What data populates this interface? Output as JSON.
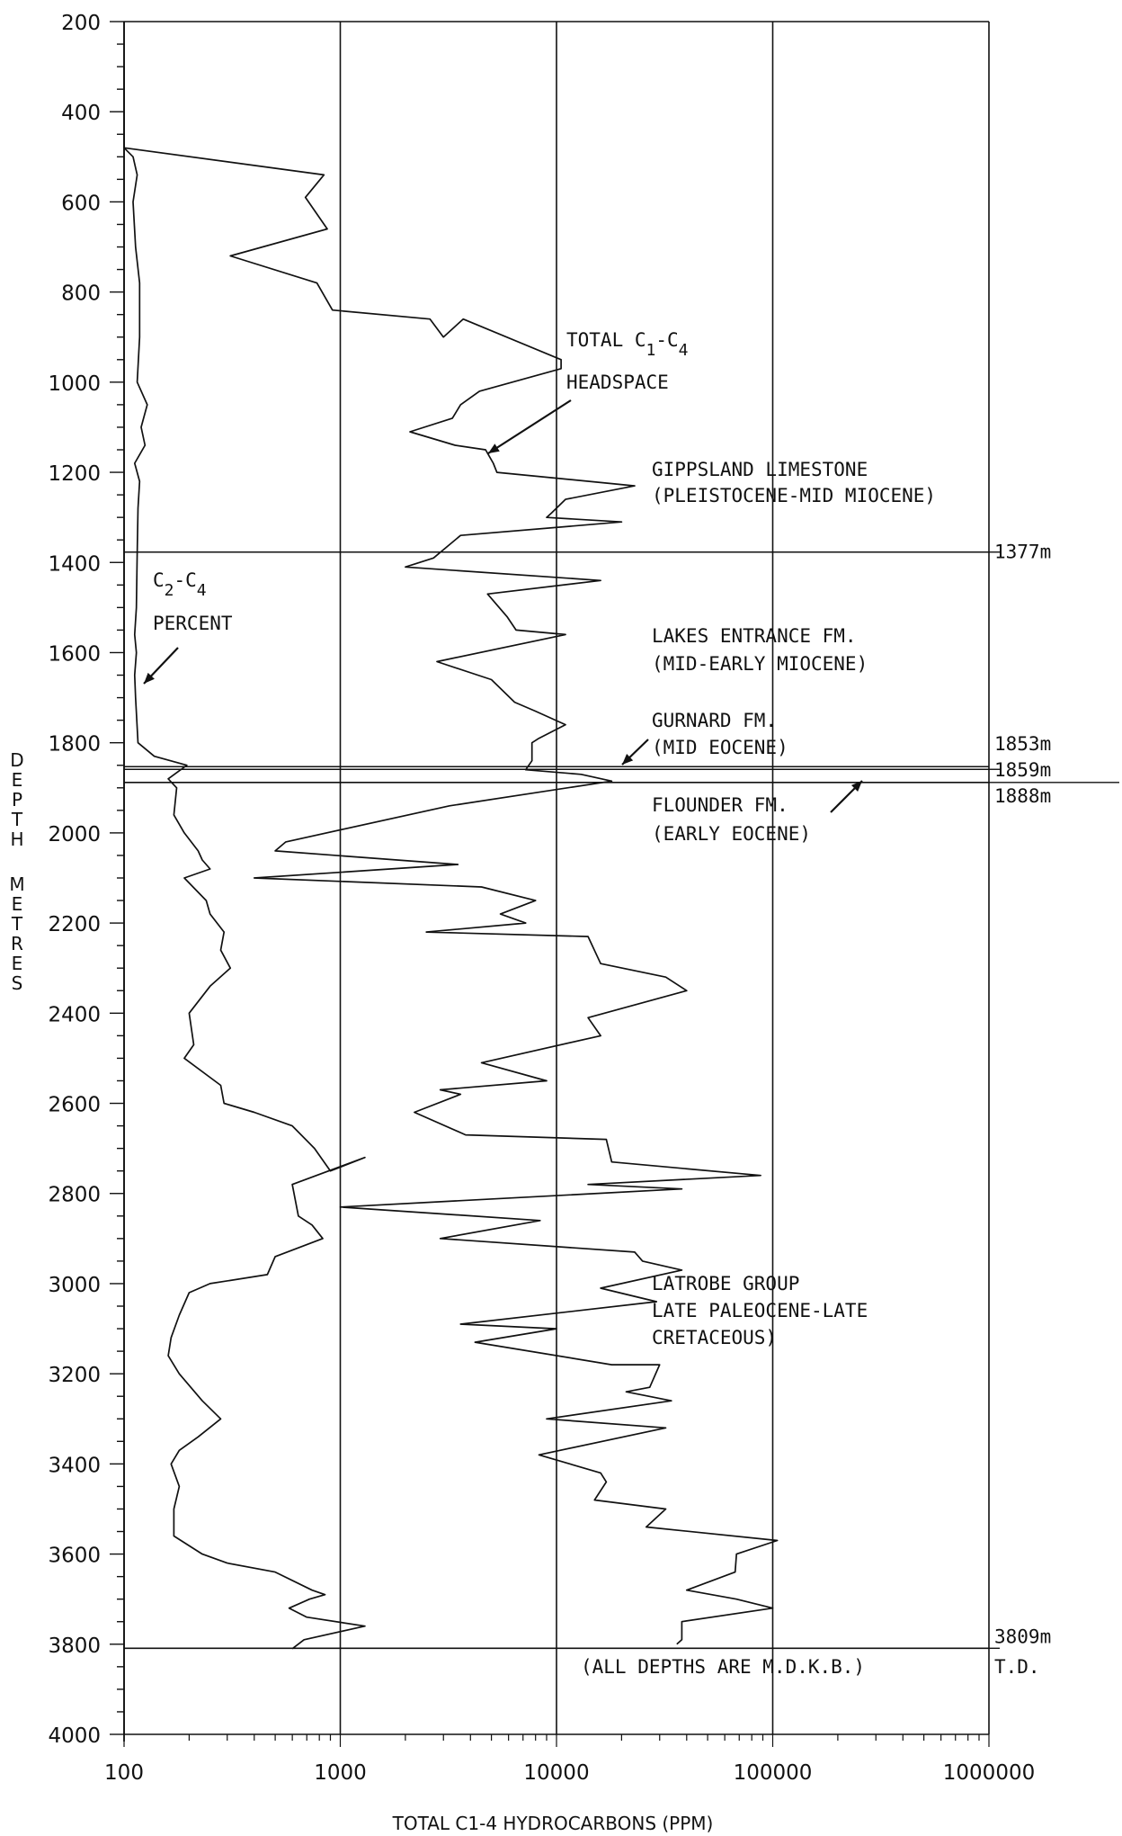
{
  "chart_data": {
    "type": "line",
    "xscale": "log",
    "xlim": [
      100,
      1000000
    ],
    "ylim": [
      200,
      4000
    ],
    "y_inverted": true,
    "grid": "vertical lines at each decade of x",
    "xlabel": "TOTAL C1-4 HYDROCARBONS (PPM)",
    "ylabel": "DEPTH METRES",
    "x_ticks": [
      {
        "value": 100,
        "label": "100"
      },
      {
        "value": 1000,
        "label": "1000"
      },
      {
        "value": 10000,
        "label": "10000"
      },
      {
        "value": 100000,
        "label": "100000"
      },
      {
        "value": 1000000,
        "label": "1000000"
      }
    ],
    "y_ticks": [
      {
        "value": 200,
        "label": "200"
      },
      {
        "value": 400,
        "label": "400"
      },
      {
        "value": 600,
        "label": "600"
      },
      {
        "value": 800,
        "label": "800"
      },
      {
        "value": 1000,
        "label": "1000"
      },
      {
        "value": 1200,
        "label": "1200"
      },
      {
        "value": 1400,
        "label": "1400"
      },
      {
        "value": 1600,
        "label": "1600"
      },
      {
        "value": 1800,
        "label": "1800"
      },
      {
        "value": 2000,
        "label": "2000"
      },
      {
        "value": 2200,
        "label": "2200"
      },
      {
        "value": 2400,
        "label": "2400"
      },
      {
        "value": 2600,
        "label": "2600"
      },
      {
        "value": 2800,
        "label": "2800"
      },
      {
        "value": 3000,
        "label": "3000"
      },
      {
        "value": 3200,
        "label": "3200"
      },
      {
        "value": 3400,
        "label": "3400"
      },
      {
        "value": 3600,
        "label": "3600"
      },
      {
        "value": 3800,
        "label": "3800"
      },
      {
        "value": 4000,
        "label": "4000"
      }
    ],
    "series": [
      {
        "name": "TOTAL C1-C4 HEADSPACE",
        "points": [
          [
            100,
            300
          ],
          [
            100,
            480
          ],
          [
            840,
            540
          ],
          [
            690,
            590
          ],
          [
            870,
            660
          ],
          [
            310,
            720
          ],
          [
            780,
            780
          ],
          [
            920,
            840
          ],
          [
            2600,
            860
          ],
          [
            3000,
            900
          ],
          [
            3700,
            860
          ],
          [
            10500,
            950
          ],
          [
            10500,
            970
          ],
          [
            4400,
            1020
          ],
          [
            3600,
            1050
          ],
          [
            3300,
            1080
          ],
          [
            2100,
            1110
          ],
          [
            3400,
            1140
          ],
          [
            4700,
            1150
          ],
          [
            5100,
            1180
          ],
          [
            5300,
            1200
          ],
          [
            23000,
            1230
          ],
          [
            11000,
            1260
          ],
          [
            9500,
            1290
          ],
          [
            9000,
            1300
          ],
          [
            20000,
            1310
          ],
          [
            3600,
            1340
          ],
          [
            2700,
            1390
          ],
          [
            2000,
            1410
          ],
          [
            16000,
            1440
          ],
          [
            4800,
            1470
          ],
          [
            5900,
            1520
          ],
          [
            6500,
            1550
          ],
          [
            11000,
            1560
          ],
          [
            2800,
            1620
          ],
          [
            5000,
            1660
          ],
          [
            6400,
            1710
          ],
          [
            8000,
            1730
          ],
          [
            11000,
            1760
          ],
          [
            8300,
            1790
          ],
          [
            7700,
            1800
          ],
          [
            7700,
            1840
          ],
          [
            7200,
            1860
          ],
          [
            13000,
            1870
          ],
          [
            18000,
            1885
          ],
          [
            3200,
            1940
          ],
          [
            560,
            2020
          ],
          [
            500,
            2040
          ],
          [
            3500,
            2070
          ],
          [
            400,
            2100
          ],
          [
            4500,
            2120
          ],
          [
            8000,
            2150
          ],
          [
            5500,
            2180
          ],
          [
            7200,
            2200
          ],
          [
            2500,
            2220
          ],
          [
            14000,
            2230
          ],
          [
            16000,
            2290
          ],
          [
            32000,
            2320
          ],
          [
            40000,
            2350
          ],
          [
            14000,
            2410
          ],
          [
            16000,
            2450
          ],
          [
            4500,
            2510
          ],
          [
            9000,
            2550
          ],
          [
            2900,
            2570
          ],
          [
            3600,
            2580
          ],
          [
            2200,
            2620
          ],
          [
            3800,
            2670
          ],
          [
            17000,
            2680
          ],
          [
            18000,
            2730
          ],
          [
            88000,
            2760
          ],
          [
            14000,
            2780
          ],
          [
            38000,
            2790
          ],
          [
            1000,
            2830
          ],
          [
            8400,
            2860
          ],
          [
            2900,
            2900
          ],
          [
            23000,
            2930
          ],
          [
            25000,
            2950
          ],
          [
            38000,
            2970
          ],
          [
            16000,
            3010
          ],
          [
            29000,
            3040
          ],
          [
            3600,
            3090
          ],
          [
            10000,
            3100
          ],
          [
            4200,
            3130
          ],
          [
            18000,
            3180
          ],
          [
            30000,
            3180
          ],
          [
            27000,
            3230
          ],
          [
            21000,
            3240
          ],
          [
            34000,
            3260
          ],
          [
            9000,
            3300
          ],
          [
            32000,
            3320
          ],
          [
            8300,
            3380
          ],
          [
            16000,
            3420
          ],
          [
            17000,
            3440
          ],
          [
            15000,
            3480
          ],
          [
            32000,
            3500
          ],
          [
            26000,
            3540
          ],
          [
            105000,
            3570
          ],
          [
            68000,
            3600
          ],
          [
            67000,
            3640
          ],
          [
            40000,
            3680
          ],
          [
            68000,
            3700
          ],
          [
            100000,
            3720
          ],
          [
            38000,
            3750
          ],
          [
            38000,
            3790
          ],
          [
            36000,
            3800
          ]
        ]
      },
      {
        "name": "C2-C4 PERCENT",
        "points": [
          [
            100,
            480
          ],
          [
            110,
            500
          ],
          [
            115,
            540
          ],
          [
            110,
            600
          ],
          [
            113,
            700
          ],
          [
            118,
            780
          ],
          [
            118,
            900
          ],
          [
            115,
            1000
          ],
          [
            128,
            1050
          ],
          [
            120,
            1100
          ],
          [
            125,
            1140
          ],
          [
            112,
            1180
          ],
          [
            118,
            1220
          ],
          [
            116,
            1280
          ],
          [
            115,
            1380
          ],
          [
            114,
            1500
          ],
          [
            112,
            1560
          ],
          [
            114,
            1600
          ],
          [
            112,
            1650
          ],
          [
            113,
            1700
          ],
          [
            116,
            1800
          ],
          [
            138,
            1830
          ],
          [
            195,
            1850
          ],
          [
            160,
            1880
          ],
          [
            175,
            1900
          ],
          [
            170,
            1960
          ],
          [
            190,
            2000
          ],
          [
            220,
            2040
          ],
          [
            230,
            2060
          ],
          [
            250,
            2080
          ],
          [
            190,
            2100
          ],
          [
            240,
            2150
          ],
          [
            250,
            2180
          ],
          [
            290,
            2220
          ],
          [
            280,
            2260
          ],
          [
            310,
            2300
          ],
          [
            250,
            2340
          ],
          [
            200,
            2400
          ],
          [
            210,
            2470
          ],
          [
            190,
            2500
          ],
          [
            280,
            2560
          ],
          [
            290,
            2600
          ],
          [
            400,
            2620
          ],
          [
            600,
            2650
          ],
          [
            760,
            2700
          ],
          [
            900,
            2750
          ],
          [
            1300,
            2720
          ],
          [
            600,
            2780
          ],
          [
            640,
            2850
          ],
          [
            740,
            2870
          ],
          [
            830,
            2900
          ],
          [
            500,
            2940
          ],
          [
            460,
            2980
          ],
          [
            250,
            3000
          ],
          [
            200,
            3020
          ],
          [
            180,
            3070
          ],
          [
            165,
            3120
          ],
          [
            160,
            3160
          ],
          [
            180,
            3200
          ],
          [
            230,
            3260
          ],
          [
            280,
            3300
          ],
          [
            220,
            3340
          ],
          [
            180,
            3370
          ],
          [
            165,
            3400
          ],
          [
            180,
            3450
          ],
          [
            170,
            3500
          ],
          [
            170,
            3560
          ],
          [
            230,
            3600
          ],
          [
            300,
            3620
          ],
          [
            500,
            3640
          ],
          [
            740,
            3680
          ],
          [
            850,
            3690
          ],
          [
            720,
            3700
          ],
          [
            580,
            3720
          ],
          [
            700,
            3740
          ],
          [
            1300,
            3760
          ],
          [
            680,
            3790
          ],
          [
            600,
            3810
          ]
        ]
      }
    ],
    "horizontal_lines": [
      {
        "depth": 200,
        "label": ""
      },
      {
        "depth": 1377,
        "label": "1377m"
      },
      {
        "depth": 1853,
        "label": "1853m"
      },
      {
        "depth": 1859,
        "label": "1859m"
      },
      {
        "depth": 1888,
        "label": "1888m"
      },
      {
        "depth": 3809,
        "label": "3809m"
      }
    ],
    "annotations": {
      "headspace": [
        "TOTAL C",
        "1",
        "-C",
        "4",
        "HEADSPACE"
      ],
      "percent": [
        "C",
        "2",
        "-C",
        "4",
        "PERCENT"
      ],
      "gippsland": [
        "GIPPSLAND LIMESTONE",
        "(PLEISTOCENE-MID MIOCENE)"
      ],
      "lakes": [
        "LAKES ENTRANCE FM.",
        "(MID-EARLY MIOCENE)"
      ],
      "gurnard": [
        "GURNARD FM.",
        "(MID EOCENE)"
      ],
      "flounder": [
        "FLOUNDER FM.",
        "(EARLY EOCENE)"
      ],
      "latrobe": [
        "LATROBE GROUP",
        "LATE PALEOCENE-LATE",
        "CRETACEOUS)"
      ],
      "depths_note": "(ALL DEPTHS ARE M.D.K.B.)",
      "td": "T.D."
    },
    "colors": {
      "line": "#111111",
      "background": "#ffffff"
    }
  }
}
